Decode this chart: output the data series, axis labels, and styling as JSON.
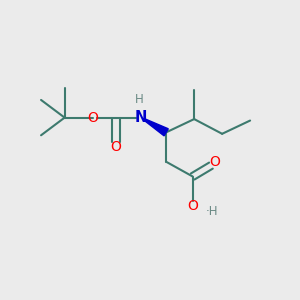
{
  "background_color": "#ebebeb",
  "bond_color": "#3d7a6e",
  "atom_colors": {
    "O": "#ff0000",
    "N": "#0000cc",
    "H_gray": "#6a8a85",
    "C": "#3d7a6e"
  },
  "figsize": [
    3.0,
    3.0
  ],
  "dpi": 100
}
